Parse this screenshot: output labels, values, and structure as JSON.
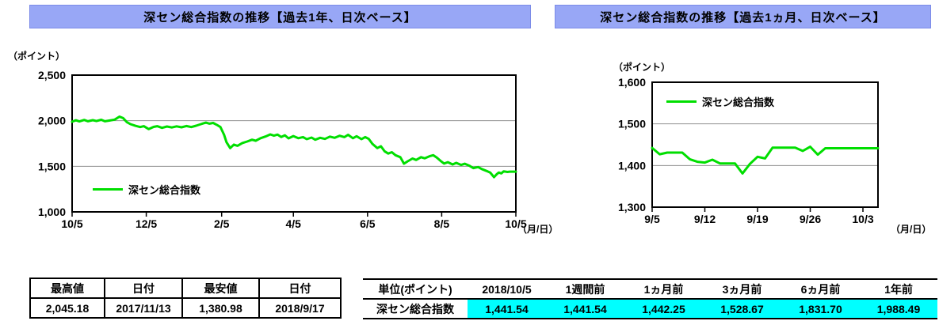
{
  "colors": {
    "title_bar_bg": "#98a7f6",
    "line_green": "#00de00",
    "highlight_cyan": "#00ffff",
    "gridline_gray": "#909090"
  },
  "chart_data": [
    {
      "type": "line",
      "title": "深セン総合指数の推移【過去1年、日次ベース】",
      "y_unit": "（ポイント）",
      "x_unit": "（月/日）",
      "legend": "深セン総合指数",
      "legend_position": "plot-bottom-left",
      "line_color": "#00de00",
      "grid": "horizontal",
      "ylim": [
        1000,
        2500
      ],
      "y_ticks": [
        {
          "value": 2500,
          "label": "2,500"
        },
        {
          "value": 2000,
          "label": "2,000"
        },
        {
          "value": 1500,
          "label": "1,500"
        },
        {
          "value": 1000,
          "label": "1,000"
        }
      ],
      "grid_values": [
        2000,
        1500
      ],
      "xlim": [
        0,
        365
      ],
      "x_ticks": [
        {
          "pos": 0,
          "label": "10/5"
        },
        {
          "pos": 61,
          "label": "12/5"
        },
        {
          "pos": 123,
          "label": "2/5"
        },
        {
          "pos": 182,
          "label": "4/5"
        },
        {
          "pos": 243,
          "label": "6/5"
        },
        {
          "pos": 304,
          "label": "8/5"
        },
        {
          "pos": 365,
          "label": "10/5"
        }
      ],
      "series": [
        {
          "name": "深セン総合指数",
          "x": [
            0,
            3,
            6,
            10,
            13,
            17,
            20,
            24,
            27,
            31,
            35,
            39,
            42,
            45,
            48,
            52,
            56,
            59,
            63,
            67,
            70,
            74,
            78,
            82,
            86,
            90,
            94,
            98,
            102,
            106,
            110,
            113,
            116,
            119,
            122,
            125,
            127,
            130,
            133,
            136,
            140,
            144,
            148,
            151,
            155,
            159,
            163,
            166,
            169,
            172,
            175,
            178,
            182,
            186,
            190,
            193,
            197,
            200,
            204,
            208,
            212,
            216,
            220,
            224,
            227,
            231,
            234,
            238,
            241,
            244,
            247,
            251,
            254,
            257,
            260,
            263,
            266,
            270,
            273,
            276,
            280,
            283,
            287,
            290,
            294,
            297,
            300,
            303,
            306,
            309,
            313,
            316,
            320,
            323,
            327,
            330,
            334,
            337,
            341,
            344,
            347,
            349,
            351,
            353,
            355,
            358,
            360,
            365
          ],
          "values": [
            1988.49,
            2005,
            1992,
            2008,
            1994,
            2006,
            1996,
            2010,
            1994,
            2002,
            2012,
            2045.18,
            2028,
            1985,
            1962,
            1944,
            1930,
            1940,
            1908,
            1932,
            1940,
            1922,
            1936,
            1926,
            1938,
            1928,
            1942,
            1930,
            1945,
            1962,
            1979,
            1968,
            1975,
            1955,
            1930,
            1845,
            1765,
            1700,
            1738,
            1725,
            1755,
            1772,
            1792,
            1780,
            1808,
            1826,
            1850,
            1836,
            1848,
            1822,
            1840,
            1806,
            1831.7,
            1808,
            1820,
            1798,
            1815,
            1792,
            1812,
            1800,
            1825,
            1812,
            1835,
            1820,
            1845,
            1808,
            1830,
            1798,
            1820,
            1800,
            1746,
            1700,
            1720,
            1665,
            1640,
            1655,
            1622,
            1600,
            1528.67,
            1555,
            1585,
            1570,
            1600,
            1588,
            1610,
            1622,
            1595,
            1560,
            1530,
            1545,
            1520,
            1538,
            1515,
            1528,
            1505,
            1480,
            1492,
            1470,
            1448,
            1430,
            1380.98,
            1410,
            1432,
            1422,
            1445,
            1438,
            1441.54,
            1441.54
          ]
        }
      ]
    },
    {
      "type": "line",
      "title": "深セン総合指数の推移【過去1ヵ月、日次ベース】",
      "y_unit": "（ポイント）",
      "x_unit": "（月/日）",
      "legend": "深セン総合指数",
      "legend_position": "plot-top-left",
      "line_color": "#00de00",
      "grid": "horizontal",
      "ylim": [
        1300,
        1600
      ],
      "y_ticks": [
        {
          "value": 1600,
          "label": "1,600"
        },
        {
          "value": 1500,
          "label": "1,500"
        },
        {
          "value": 1400,
          "label": "1,400"
        },
        {
          "value": 1300,
          "label": "1,300"
        }
      ],
      "grid_values": [
        1500,
        1400
      ],
      "xlim": [
        0,
        30
      ],
      "x_ticks": [
        {
          "pos": 0,
          "label": "9/5"
        },
        {
          "pos": 7,
          "label": "9/12"
        },
        {
          "pos": 14,
          "label": "9/19"
        },
        {
          "pos": 21,
          "label": "9/26"
        },
        {
          "pos": 28,
          "label": "10/3"
        }
      ],
      "series": [
        {
          "name": "深セン総合指数",
          "x": [
            0,
            1,
            2,
            3,
            4,
            5,
            6,
            7,
            8,
            9,
            10,
            11,
            12,
            13,
            14,
            15,
            16,
            17,
            18,
            19,
            20,
            21,
            22,
            23,
            24,
            25,
            26,
            27,
            28,
            29,
            30
          ],
          "values": [
            1442.25,
            1427,
            1431,
            1431,
            1431,
            1415,
            1409,
            1407,
            1414,
            1405,
            1405,
            1405,
            1380.98,
            1404,
            1421,
            1417,
            1443,
            1443,
            1443,
            1443,
            1435,
            1445,
            1426,
            1441.54,
            1441.54,
            1441.54,
            1441.54,
            1441.54,
            1441.54,
            1441.54,
            1441.54
          ]
        }
      ]
    }
  ],
  "tables": {
    "extremes": {
      "headers": [
        "最高値",
        "日付",
        "最安値",
        "日付"
      ],
      "values": [
        "2,045.18",
        "2017/11/13",
        "1,380.98",
        "2018/9/17"
      ]
    },
    "history": {
      "headers": [
        "単位(ポイント)",
        "2018/10/5",
        "1週間前",
        "1ヵ月前",
        "3ヵ月前",
        "6ヵ月前",
        "1年前"
      ],
      "row_label": "深セン総合指数",
      "values": [
        "1,441.54",
        "1,441.54",
        "1,442.25",
        "1,528.67",
        "1,831.70",
        "1,988.49"
      ],
      "value_cell_bg": "#00ffff"
    }
  }
}
